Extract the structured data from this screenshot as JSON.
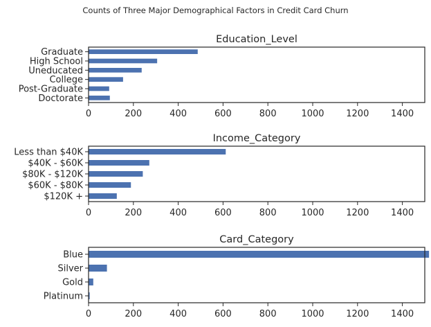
{
  "figure": {
    "suptitle": "Counts of Three Major Demographical Factors in Credit Card Churn",
    "bar_color": "#4c72b0",
    "text_color": "#262626"
  },
  "chart_data": [
    {
      "type": "bar",
      "orientation": "horizontal",
      "title": "Education_Level",
      "categories": [
        "Graduate",
        "High School",
        "Uneducated",
        "College",
        "Post-Graduate",
        "Doctorate"
      ],
      "values": [
        487,
        306,
        237,
        154,
        92,
        95
      ],
      "xlim": [
        0,
        1500
      ],
      "xticks": [
        0,
        200,
        400,
        600,
        800,
        1000,
        1200,
        1400
      ],
      "xlabel": "",
      "ylabel": "",
      "grid": false
    },
    {
      "type": "bar",
      "orientation": "horizontal",
      "title": "Income_Category",
      "categories": [
        "Less than $40K",
        "$40K - $60K",
        "$80K - $120K",
        "$60K - $80K",
        "$120K +"
      ],
      "values": [
        612,
        271,
        242,
        189,
        126
      ],
      "xlim": [
        0,
        1500
      ],
      "xticks": [
        0,
        200,
        400,
        600,
        800,
        1000,
        1200,
        1400
      ],
      "xlabel": "",
      "ylabel": "",
      "grid": false
    },
    {
      "type": "bar",
      "orientation": "horizontal",
      "title": "Card_Category",
      "categories": [
        "Blue",
        "Silver",
        "Gold",
        "Platinum"
      ],
      "values": [
        1519,
        82,
        21,
        5
      ],
      "xlim": [
        0,
        1500
      ],
      "xticks": [
        0,
        200,
        400,
        600,
        800,
        1000,
        1200,
        1400
      ],
      "xlabel": "",
      "ylabel": "",
      "grid": false
    }
  ]
}
